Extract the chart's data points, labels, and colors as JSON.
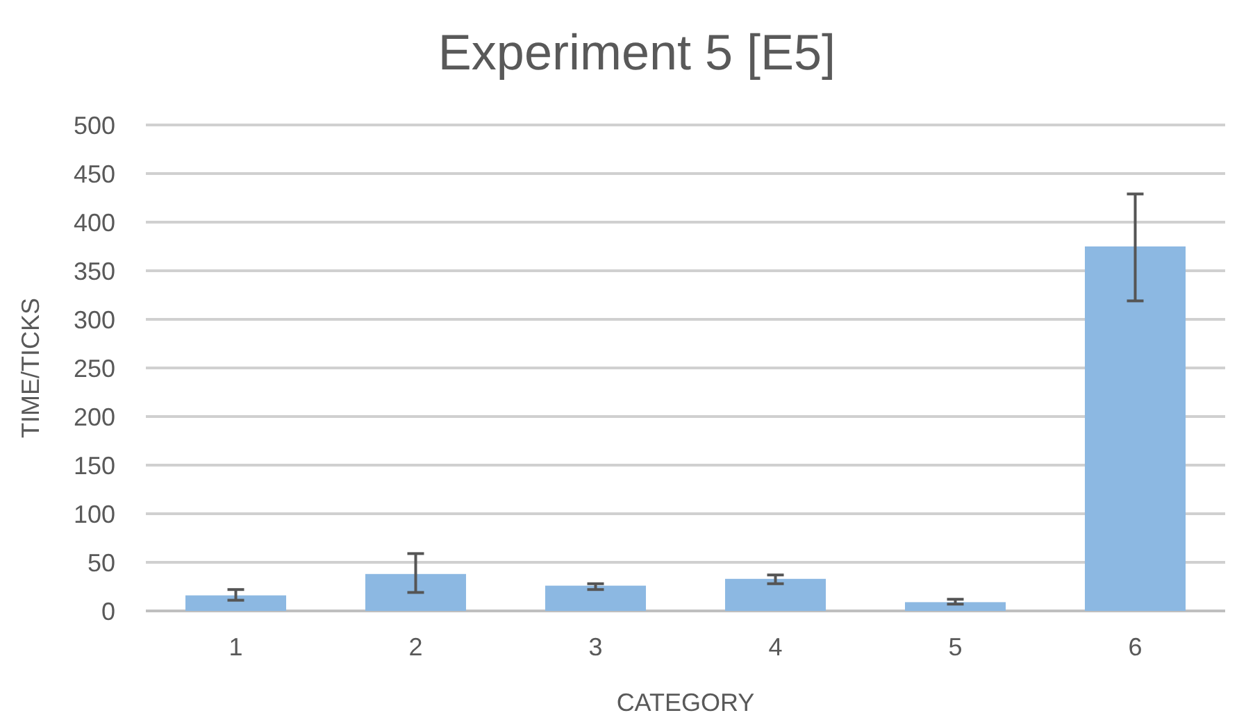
{
  "chart_data": {
    "type": "bar",
    "title": "Experiment 5 [E5]",
    "xlabel": "CATEGORY",
    "ylabel": "TIME/TICKS",
    "categories": [
      "1",
      "2",
      "3",
      "4",
      "5",
      "6"
    ],
    "values": [
      16,
      38,
      26,
      33,
      9,
      375
    ],
    "errors": [
      [
        11,
        22
      ],
      [
        19,
        59
      ],
      [
        22,
        28
      ],
      [
        28,
        37
      ],
      [
        7,
        12
      ],
      [
        319,
        429
      ]
    ],
    "color": "#8cb8e2",
    "ylim": [
      0,
      500
    ],
    "yticks": [
      0,
      50,
      100,
      150,
      200,
      250,
      300,
      350,
      400,
      450,
      500
    ],
    "grid": "y"
  }
}
